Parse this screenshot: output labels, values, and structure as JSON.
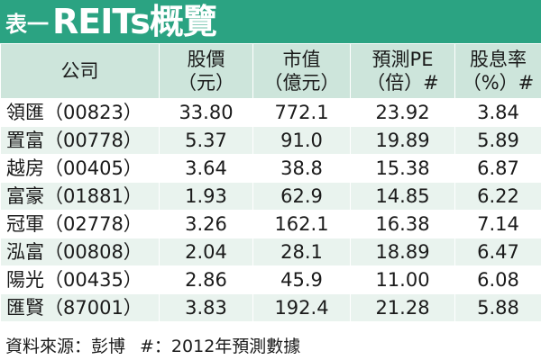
{
  "title": {
    "prefix": "表一",
    "main": "REITs概覽"
  },
  "table": {
    "headers": [
      {
        "line1": "公司",
        "line2": ""
      },
      {
        "line1": "股價",
        "line2": "（元）"
      },
      {
        "line1": "市值",
        "line2": "（億元）"
      },
      {
        "line1": "預測PE",
        "line2": "（倍）#"
      },
      {
        "line1": "股息率",
        "line2": "（%）#"
      }
    ],
    "rows": [
      [
        "領匯（00823）",
        "33.80",
        "772.1",
        "23.92",
        "3.84"
      ],
      [
        "置富（00778）",
        "5.37",
        "91.0",
        "19.89",
        "5.89"
      ],
      [
        "越房（00405）",
        "3.64",
        "38.8",
        "15.38",
        "6.87"
      ],
      [
        "富豪（01881）",
        "1.93",
        "62.9",
        "14.85",
        "6.22"
      ],
      [
        "冠軍（02778）",
        "3.26",
        "162.1",
        "16.38",
        "7.14"
      ],
      [
        "泓富（00808）",
        "2.04",
        "28.1",
        "18.89",
        "6.47"
      ],
      [
        "陽光（00435）",
        "2.86",
        "45.9",
        "11.00",
        "6.08"
      ],
      [
        "匯賢（87001）",
        "3.83",
        "192.4",
        "21.28",
        "5.88"
      ]
    ]
  },
  "footer": {
    "source": "資料來源：彭博",
    "note": "#：2012年預測數據"
  },
  "colors": {
    "title_bar": "#2ba382",
    "header_bg": "#cde5db",
    "row_alt_bg": "#e9f3ee"
  }
}
